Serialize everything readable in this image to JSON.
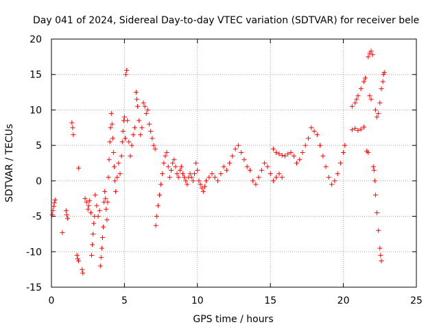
{
  "chart_data": {
    "type": "scatter",
    "title": "Day 041 of 2024, Sidereal Day-to-day VTEC variation (SDTVAR) for receiver bele",
    "xlabel": "GPS time / hours",
    "ylabel": "SDTVAR / TECUs",
    "xlim": [
      0,
      25
    ],
    "ylim": [
      -15,
      20
    ],
    "xticks": [
      0,
      5,
      10,
      15,
      20,
      25
    ],
    "yticks": [
      -15,
      -10,
      -5,
      0,
      5,
      10,
      15,
      20
    ],
    "grid": true,
    "marker": "+",
    "color": "#ff0000",
    "series": [
      {
        "name": "SDTVAR",
        "points": [
          [
            0.05,
            -4.8
          ],
          [
            0.1,
            -4.2
          ],
          [
            0.15,
            -3.6
          ],
          [
            0.2,
            -3.1
          ],
          [
            0.25,
            -2.7
          ],
          [
            0.75,
            -7.3
          ],
          [
            1.0,
            -4.2
          ],
          [
            1.05,
            -4.8
          ],
          [
            1.1,
            -5.3
          ],
          [
            1.4,
            8.2
          ],
          [
            1.45,
            7.5
          ],
          [
            1.5,
            6.5
          ],
          [
            1.85,
            1.8
          ],
          [
            1.75,
            -10.5
          ],
          [
            1.8,
            -11.0
          ],
          [
            1.85,
            -11.3
          ],
          [
            2.1,
            -12.5
          ],
          [
            2.15,
            -13.0
          ],
          [
            2.3,
            -2.5
          ],
          [
            2.4,
            -3.0
          ],
          [
            2.5,
            -4.0
          ],
          [
            2.55,
            -3.5
          ],
          [
            2.6,
            -2.8
          ],
          [
            2.7,
            -4.5
          ],
          [
            2.75,
            -10.5
          ],
          [
            2.8,
            -9.0
          ],
          [
            2.85,
            -7.5
          ],
          [
            2.9,
            -6.0
          ],
          [
            2.95,
            -5.0
          ],
          [
            3.0,
            -2.0
          ],
          [
            3.1,
            -3.5
          ],
          [
            3.2,
            -5.0
          ],
          [
            3.3,
            -4.2
          ],
          [
            3.35,
            -12.0
          ],
          [
            3.4,
            -10.8
          ],
          [
            3.45,
            -9.5
          ],
          [
            3.5,
            -8.0
          ],
          [
            3.55,
            -6.5
          ],
          [
            3.6,
            -3.0
          ],
          [
            3.65,
            -1.5
          ],
          [
            3.7,
            -2.5
          ],
          [
            3.75,
            -4.0
          ],
          [
            3.8,
            -5.5
          ],
          [
            3.85,
            -3.0
          ],
          [
            3.9,
            0.5
          ],
          [
            3.95,
            3.0
          ],
          [
            4.0,
            5.5
          ],
          [
            4.05,
            7.5
          ],
          [
            4.1,
            9.5
          ],
          [
            4.15,
            8.0
          ],
          [
            4.2,
            6.0
          ],
          [
            4.25,
            4.0
          ],
          [
            4.3,
            2.0
          ],
          [
            4.35,
            0.0
          ],
          [
            4.4,
            -1.5
          ],
          [
            4.5,
            0.5
          ],
          [
            4.6,
            2.5
          ],
          [
            4.7,
            1.0
          ],
          [
            4.8,
            3.5
          ],
          [
            4.85,
            5.5
          ],
          [
            4.9,
            7.0
          ],
          [
            4.95,
            8.5
          ],
          [
            5.0,
            9.0
          ],
          [
            5.05,
            6.0
          ],
          [
            5.1,
            15.0
          ],
          [
            5.15,
            15.6
          ],
          [
            5.2,
            8.5
          ],
          [
            5.3,
            5.5
          ],
          [
            5.4,
            3.5
          ],
          [
            5.5,
            5.0
          ],
          [
            5.6,
            6.5
          ],
          [
            5.7,
            7.5
          ],
          [
            5.8,
            12.5
          ],
          [
            5.85,
            11.5
          ],
          [
            5.9,
            10.5
          ],
          [
            6.0,
            8.5
          ],
          [
            6.1,
            6.5
          ],
          [
            6.2,
            7.5
          ],
          [
            6.3,
            11.0
          ],
          [
            6.4,
            10.5
          ],
          [
            6.5,
            9.5
          ],
          [
            6.6,
            10.0
          ],
          [
            6.7,
            8.0
          ],
          [
            6.8,
            7.0
          ],
          [
            6.9,
            6.0
          ],
          [
            7.0,
            5.0
          ],
          [
            7.1,
            4.5
          ],
          [
            7.15,
            -6.3
          ],
          [
            7.2,
            -5.0
          ],
          [
            7.3,
            -3.5
          ],
          [
            7.4,
            -2.0
          ],
          [
            7.5,
            -0.5
          ],
          [
            7.6,
            1.0
          ],
          [
            7.7,
            2.5
          ],
          [
            7.8,
            3.5
          ],
          [
            7.9,
            4.0
          ],
          [
            8.0,
            2.0
          ],
          [
            8.1,
            0.5
          ],
          [
            8.2,
            1.5
          ],
          [
            8.3,
            2.5
          ],
          [
            8.4,
            3.0
          ],
          [
            8.5,
            2.0
          ],
          [
            8.6,
            1.0
          ],
          [
            8.7,
            0.5
          ],
          [
            8.8,
            1.5
          ],
          [
            8.9,
            2.0
          ],
          [
            9.0,
            1.0
          ],
          [
            9.1,
            0.5
          ],
          [
            9.2,
            0.0
          ],
          [
            9.3,
            -0.5
          ],
          [
            9.4,
            0.5
          ],
          [
            9.5,
            1.0
          ],
          [
            9.6,
            0.5
          ],
          [
            9.7,
            0.0
          ],
          [
            9.8,
            1.0
          ],
          [
            9.9,
            2.5
          ],
          [
            10.0,
            1.5
          ],
          [
            10.1,
            0.0
          ],
          [
            10.2,
            -0.5
          ],
          [
            10.3,
            -1.0
          ],
          [
            10.4,
            -1.5
          ],
          [
            10.5,
            -0.8
          ],
          [
            10.6,
            0.0
          ],
          [
            10.8,
            0.5
          ],
          [
            11.0,
            1.0
          ],
          [
            11.2,
            0.5
          ],
          [
            11.4,
            0.0
          ],
          [
            11.6,
            1.0
          ],
          [
            11.8,
            2.0
          ],
          [
            12.0,
            1.5
          ],
          [
            12.2,
            2.5
          ],
          [
            12.4,
            3.5
          ],
          [
            12.6,
            4.5
          ],
          [
            12.8,
            5.0
          ],
          [
            13.0,
            4.0
          ],
          [
            13.2,
            3.0
          ],
          [
            13.4,
            2.0
          ],
          [
            13.6,
            1.5
          ],
          [
            13.8,
            0.0
          ],
          [
            14.0,
            -0.5
          ],
          [
            14.2,
            0.5
          ],
          [
            14.4,
            1.5
          ],
          [
            14.6,
            2.5
          ],
          [
            14.8,
            2.0
          ],
          [
            15.0,
            1.0
          ],
          [
            15.2,
            0.0
          ],
          [
            15.4,
            0.5
          ],
          [
            15.6,
            1.0
          ],
          [
            15.8,
            0.5
          ],
          [
            15.2,
            4.5
          ],
          [
            15.4,
            4.0
          ],
          [
            15.6,
            3.8
          ],
          [
            15.8,
            3.6
          ],
          [
            16.0,
            3.5
          ],
          [
            16.2,
            3.8
          ],
          [
            16.4,
            4.0
          ],
          [
            16.6,
            3.5
          ],
          [
            16.8,
            2.5
          ],
          [
            17.0,
            3.0
          ],
          [
            17.2,
            4.0
          ],
          [
            17.4,
            5.0
          ],
          [
            17.6,
            6.0
          ],
          [
            17.8,
            7.5
          ],
          [
            18.0,
            7.0
          ],
          [
            18.2,
            6.5
          ],
          [
            18.4,
            5.0
          ],
          [
            18.6,
            3.5
          ],
          [
            18.8,
            2.0
          ],
          [
            19.0,
            0.5
          ],
          [
            19.2,
            -0.5
          ],
          [
            19.4,
            0.0
          ],
          [
            19.6,
            1.0
          ],
          [
            19.8,
            2.5
          ],
          [
            20.0,
            4.0
          ],
          [
            20.1,
            5.0
          ],
          [
            20.6,
            10.5
          ],
          [
            20.8,
            11.0
          ],
          [
            20.9,
            11.5
          ],
          [
            21.0,
            12.0
          ],
          [
            21.2,
            13.0
          ],
          [
            21.4,
            14.0
          ],
          [
            21.5,
            14.5
          ],
          [
            20.6,
            7.2
          ],
          [
            20.8,
            7.4
          ],
          [
            21.0,
            7.1
          ],
          [
            21.2,
            7.3
          ],
          [
            21.4,
            7.6
          ],
          [
            21.6,
            4.2
          ],
          [
            21.7,
            4.0
          ],
          [
            21.8,
            12.0
          ],
          [
            21.9,
            11.5
          ],
          [
            21.7,
            17.5
          ],
          [
            21.8,
            18.0
          ],
          [
            21.9,
            18.3
          ],
          [
            22.0,
            17.8
          ],
          [
            22.05,
            2.0
          ],
          [
            22.1,
            1.5
          ],
          [
            22.15,
            0.0
          ],
          [
            22.2,
            -2.0
          ],
          [
            22.3,
            -4.5
          ],
          [
            22.4,
            -7.0
          ],
          [
            22.5,
            -9.5
          ],
          [
            22.55,
            -10.5
          ],
          [
            22.6,
            -11.3
          ],
          [
            22.2,
            10.0
          ],
          [
            22.3,
            9.0
          ],
          [
            22.4,
            9.5
          ],
          [
            22.5,
            11.0
          ],
          [
            22.6,
            13.0
          ],
          [
            22.7,
            14.0
          ],
          [
            22.75,
            15.0
          ],
          [
            22.8,
            15.3
          ]
        ]
      }
    ]
  }
}
